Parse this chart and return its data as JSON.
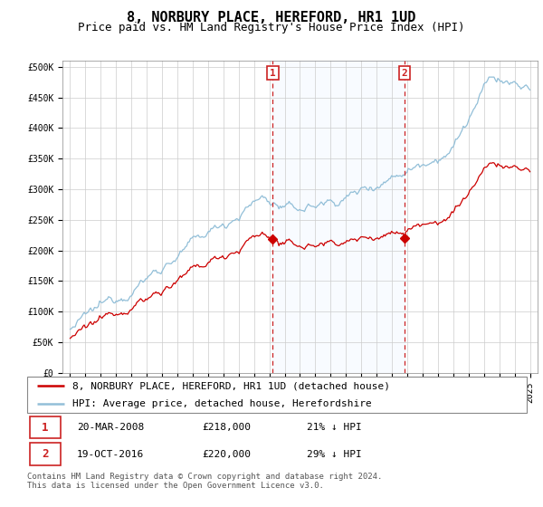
{
  "title": "8, NORBURY PLACE, HEREFORD, HR1 1UD",
  "subtitle": "Price paid vs. HM Land Registry's House Price Index (HPI)",
  "yticks": [
    0,
    50000,
    100000,
    150000,
    200000,
    250000,
    300000,
    350000,
    400000,
    450000,
    500000
  ],
  "ytick_labels": [
    "£0",
    "£50K",
    "£100K",
    "£150K",
    "£200K",
    "£250K",
    "£300K",
    "£350K",
    "£400K",
    "£450K",
    "£500K"
  ],
  "xlim_start": 1994.5,
  "xlim_end": 2025.5,
  "ylim_min": 0,
  "ylim_max": 510000,
  "sale1_year": 2008.22,
  "sale1_price": 218000,
  "sale1_label": "1",
  "sale2_year": 2016.8,
  "sale2_price": 220000,
  "sale2_label": "2",
  "hpi_color": "#92bfd8",
  "property_color": "#cc0000",
  "annotation_box_color": "#cc2222",
  "vline_color": "#cc2222",
  "background_shaded_color": "#ddeeff",
  "legend_label_property": "8, NORBURY PLACE, HEREFORD, HR1 1UD (detached house)",
  "legend_label_hpi": "HPI: Average price, detached house, Herefordshire",
  "table_row1": [
    "1",
    "20-MAR-2008",
    "£218,000",
    "21% ↓ HPI"
  ],
  "table_row2": [
    "2",
    "19-OCT-2016",
    "£220,000",
    "29% ↓ HPI"
  ],
  "footer": "Contains HM Land Registry data © Crown copyright and database right 2024.\nThis data is licensed under the Open Government Licence v3.0.",
  "title_fontsize": 11,
  "subtitle_fontsize": 9,
  "tick_fontsize": 7,
  "legend_fontsize": 8,
  "table_fontsize": 8,
  "footer_fontsize": 6.5
}
